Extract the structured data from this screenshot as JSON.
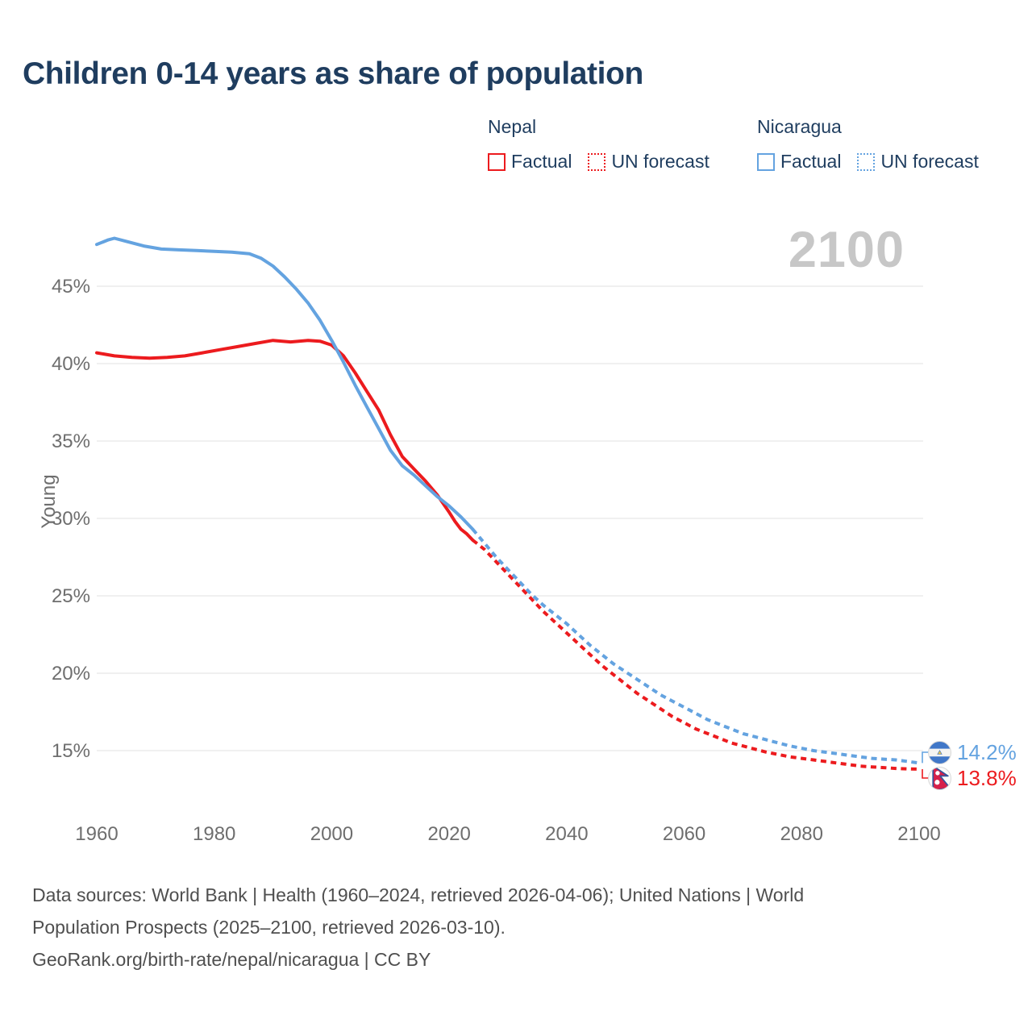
{
  "title": "Children 0-14 years as share of population",
  "watermark": "2100",
  "colors": {
    "nepal": "#ec1b1e",
    "nicaragua": "#64a3e0",
    "title": "#1f3d5f",
    "axis_text": "#6e6e6e",
    "grid": "#ebebeb",
    "watermark": "#c7c7c7",
    "footer_text": "#4f4f4f"
  },
  "legend": {
    "groups": [
      {
        "country": "Nepal",
        "items": [
          {
            "label": "Factual",
            "style": "solid"
          },
          {
            "label": "UN forecast",
            "style": "dotted"
          }
        ]
      },
      {
        "country": "Nicaragua",
        "items": [
          {
            "label": "Factual",
            "style": "solid"
          },
          {
            "label": "UN forecast",
            "style": "dotted"
          }
        ]
      }
    ]
  },
  "chart_data": {
    "type": "line",
    "title": "Children 0-14 years as share of population",
    "xlabel": "",
    "ylabel": "Young",
    "xlim": [
      1960,
      2100
    ],
    "ylim": [
      13,
      48.5
    ],
    "x_ticks": [
      1960,
      1980,
      2000,
      2020,
      2040,
      2060,
      2080,
      2100
    ],
    "y_ticks_percent": [
      15,
      20,
      25,
      30,
      35,
      40,
      45
    ],
    "grid": "horizontal",
    "legend_position": "top-right",
    "forecast_boundary_year": 2024,
    "series": [
      {
        "name": "Nepal — Factual",
        "country": "Nepal",
        "color": "#ec1b1e",
        "style": "solid",
        "points": [
          [
            1960,
            40.7
          ],
          [
            1963,
            40.5
          ],
          [
            1966,
            40.4
          ],
          [
            1969,
            40.35
          ],
          [
            1972,
            40.4
          ],
          [
            1975,
            40.5
          ],
          [
            1978,
            40.7
          ],
          [
            1981,
            40.9
          ],
          [
            1984,
            41.1
          ],
          [
            1987,
            41.3
          ],
          [
            1990,
            41.5
          ],
          [
            1993,
            41.4
          ],
          [
            1996,
            41.5
          ],
          [
            1998,
            41.45
          ],
          [
            2000,
            41.2
          ],
          [
            2002,
            40.5
          ],
          [
            2004,
            39.4
          ],
          [
            2006,
            38.2
          ],
          [
            2008,
            37.0
          ],
          [
            2010,
            35.4
          ],
          [
            2012,
            34.0
          ],
          [
            2014,
            33.2
          ],
          [
            2016,
            32.4
          ],
          [
            2018,
            31.5
          ],
          [
            2020,
            30.4
          ],
          [
            2021,
            29.8
          ],
          [
            2022,
            29.3
          ],
          [
            2023,
            29.0
          ],
          [
            2024,
            28.6
          ]
        ]
      },
      {
        "name": "Nepal — UN forecast",
        "country": "Nepal",
        "color": "#ec1b1e",
        "style": "dashed",
        "points": [
          [
            2024,
            28.6
          ],
          [
            2026,
            28.0
          ],
          [
            2028,
            27.2
          ],
          [
            2030,
            26.4
          ],
          [
            2032,
            25.6
          ],
          [
            2034,
            24.8
          ],
          [
            2036,
            24.0
          ],
          [
            2038,
            23.3
          ],
          [
            2040,
            22.6
          ],
          [
            2042,
            21.9
          ],
          [
            2044,
            21.2
          ],
          [
            2046,
            20.5
          ],
          [
            2048,
            19.9
          ],
          [
            2050,
            19.3
          ],
          [
            2052,
            18.7
          ],
          [
            2054,
            18.2
          ],
          [
            2056,
            17.7
          ],
          [
            2058,
            17.2
          ],
          [
            2060,
            16.8
          ],
          [
            2062,
            16.4
          ],
          [
            2064,
            16.1
          ],
          [
            2066,
            15.8
          ],
          [
            2068,
            15.5
          ],
          [
            2070,
            15.3
          ],
          [
            2072,
            15.1
          ],
          [
            2074,
            14.9
          ],
          [
            2076,
            14.75
          ],
          [
            2078,
            14.6
          ],
          [
            2080,
            14.5
          ],
          [
            2082,
            14.4
          ],
          [
            2084,
            14.3
          ],
          [
            2086,
            14.2
          ],
          [
            2088,
            14.1
          ],
          [
            2090,
            14.0
          ],
          [
            2092,
            13.95
          ],
          [
            2094,
            13.9
          ],
          [
            2096,
            13.85
          ],
          [
            2098,
            13.82
          ],
          [
            2100,
            13.8
          ]
        ]
      },
      {
        "name": "Nicaragua — Factual",
        "country": "Nicaragua",
        "color": "#64a3e0",
        "style": "solid",
        "points": [
          [
            1960,
            47.7
          ],
          [
            1962,
            48.0
          ],
          [
            1963,
            48.1
          ],
          [
            1965,
            47.9
          ],
          [
            1968,
            47.6
          ],
          [
            1971,
            47.4
          ],
          [
            1974,
            47.35
          ],
          [
            1977,
            47.3
          ],
          [
            1980,
            47.25
          ],
          [
            1983,
            47.2
          ],
          [
            1986,
            47.1
          ],
          [
            1988,
            46.8
          ],
          [
            1990,
            46.3
          ],
          [
            1992,
            45.6
          ],
          [
            1994,
            44.8
          ],
          [
            1996,
            43.9
          ],
          [
            1998,
            42.8
          ],
          [
            2000,
            41.5
          ],
          [
            2002,
            40.1
          ],
          [
            2004,
            38.6
          ],
          [
            2006,
            37.2
          ],
          [
            2008,
            35.8
          ],
          [
            2010,
            34.4
          ],
          [
            2012,
            33.4
          ],
          [
            2014,
            32.8
          ],
          [
            2016,
            32.1
          ],
          [
            2018,
            31.4
          ],
          [
            2020,
            30.8
          ],
          [
            2022,
            30.1
          ],
          [
            2024,
            29.3
          ]
        ]
      },
      {
        "name": "Nicaragua — UN forecast",
        "country": "Nicaragua",
        "color": "#64a3e0",
        "style": "dashed",
        "points": [
          [
            2024,
            29.3
          ],
          [
            2026,
            28.4
          ],
          [
            2028,
            27.5
          ],
          [
            2030,
            26.7
          ],
          [
            2032,
            25.9
          ],
          [
            2034,
            25.1
          ],
          [
            2036,
            24.4
          ],
          [
            2038,
            23.8
          ],
          [
            2040,
            23.2
          ],
          [
            2042,
            22.5
          ],
          [
            2044,
            21.8
          ],
          [
            2046,
            21.2
          ],
          [
            2048,
            20.6
          ],
          [
            2050,
            20.1
          ],
          [
            2052,
            19.6
          ],
          [
            2054,
            19.1
          ],
          [
            2056,
            18.6
          ],
          [
            2058,
            18.2
          ],
          [
            2060,
            17.8
          ],
          [
            2062,
            17.4
          ],
          [
            2064,
            17.0
          ],
          [
            2066,
            16.7
          ],
          [
            2068,
            16.4
          ],
          [
            2070,
            16.1
          ],
          [
            2072,
            15.9
          ],
          [
            2074,
            15.7
          ],
          [
            2076,
            15.5
          ],
          [
            2078,
            15.3
          ],
          [
            2080,
            15.15
          ],
          [
            2082,
            15.0
          ],
          [
            2084,
            14.9
          ],
          [
            2086,
            14.8
          ],
          [
            2088,
            14.7
          ],
          [
            2090,
            14.6
          ],
          [
            2092,
            14.5
          ],
          [
            2094,
            14.45
          ],
          [
            2096,
            14.4
          ],
          [
            2098,
            14.3
          ],
          [
            2100,
            14.2
          ]
        ]
      }
    ],
    "end_labels": [
      {
        "country": "Nicaragua",
        "value": "14.2%",
        "color": "#64a3e0",
        "flag": "nicaragua-flag-icon"
      },
      {
        "country": "Nepal",
        "value": "13.8%",
        "color": "#ec1b1e",
        "flag": "nepal-flag-icon"
      }
    ]
  },
  "footer": {
    "lines": [
      "Data sources: World Bank | Health (1960–2024, retrieved 2026-04-06); United Nations | World",
      "Population Prospects (2025–2100, retrieved 2026-03-10).",
      "GeoRank.org/birth-rate/nepal/nicaragua | CC BY"
    ]
  }
}
